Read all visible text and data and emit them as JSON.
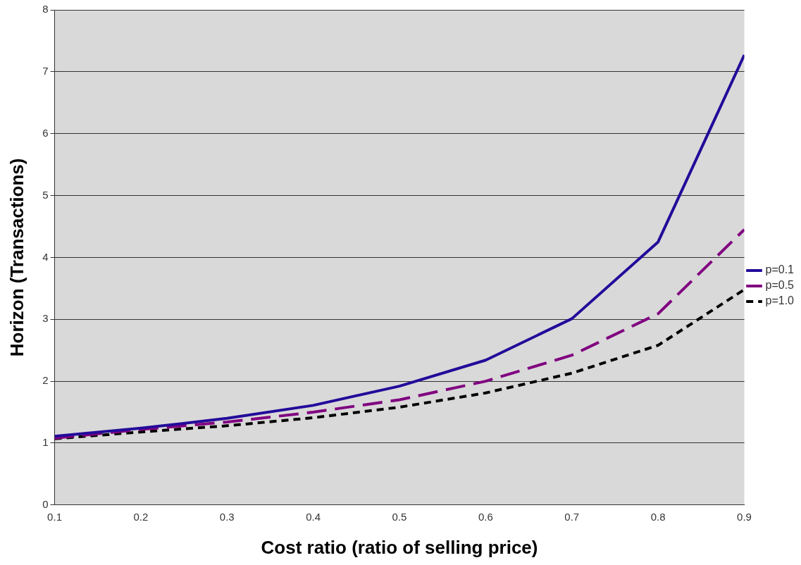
{
  "chart_data": {
    "type": "line",
    "xlabel": "Cost ratio (ratio of selling price)",
    "ylabel": "Horizon (Transactions)",
    "x": [
      0.1,
      0.2,
      0.3,
      0.4,
      0.5,
      0.6,
      0.7,
      0.8,
      0.9
    ],
    "xlim": [
      0.1,
      0.9
    ],
    "xticks": [
      0.1,
      0.2,
      0.3,
      0.4,
      0.5,
      0.6,
      0.7,
      0.8,
      0.9
    ],
    "ylim": [
      0,
      8
    ],
    "yticks": [
      0,
      1,
      2,
      3,
      4,
      5,
      6,
      7,
      8
    ],
    "grid": "y",
    "legend": "right",
    "marker": "none",
    "series": [
      {
        "name": "p=0.1",
        "color": "#230b9a",
        "line_style": "solid",
        "values": [
          1.11,
          1.24,
          1.4,
          1.61,
          1.92,
          2.34,
          3.01,
          4.25,
          7.27
        ]
      },
      {
        "name": "p=0.5",
        "color": "#800080",
        "line_style": "dashed",
        "values": [
          1.08,
          1.22,
          1.34,
          1.5,
          1.7,
          2.0,
          2.42,
          3.09,
          4.45
        ]
      },
      {
        "name": "p=1.0",
        "color": "#000000",
        "line_style": "dotted",
        "values": [
          1.07,
          1.18,
          1.28,
          1.41,
          1.58,
          1.81,
          2.13,
          2.58,
          3.48
        ]
      }
    ]
  }
}
